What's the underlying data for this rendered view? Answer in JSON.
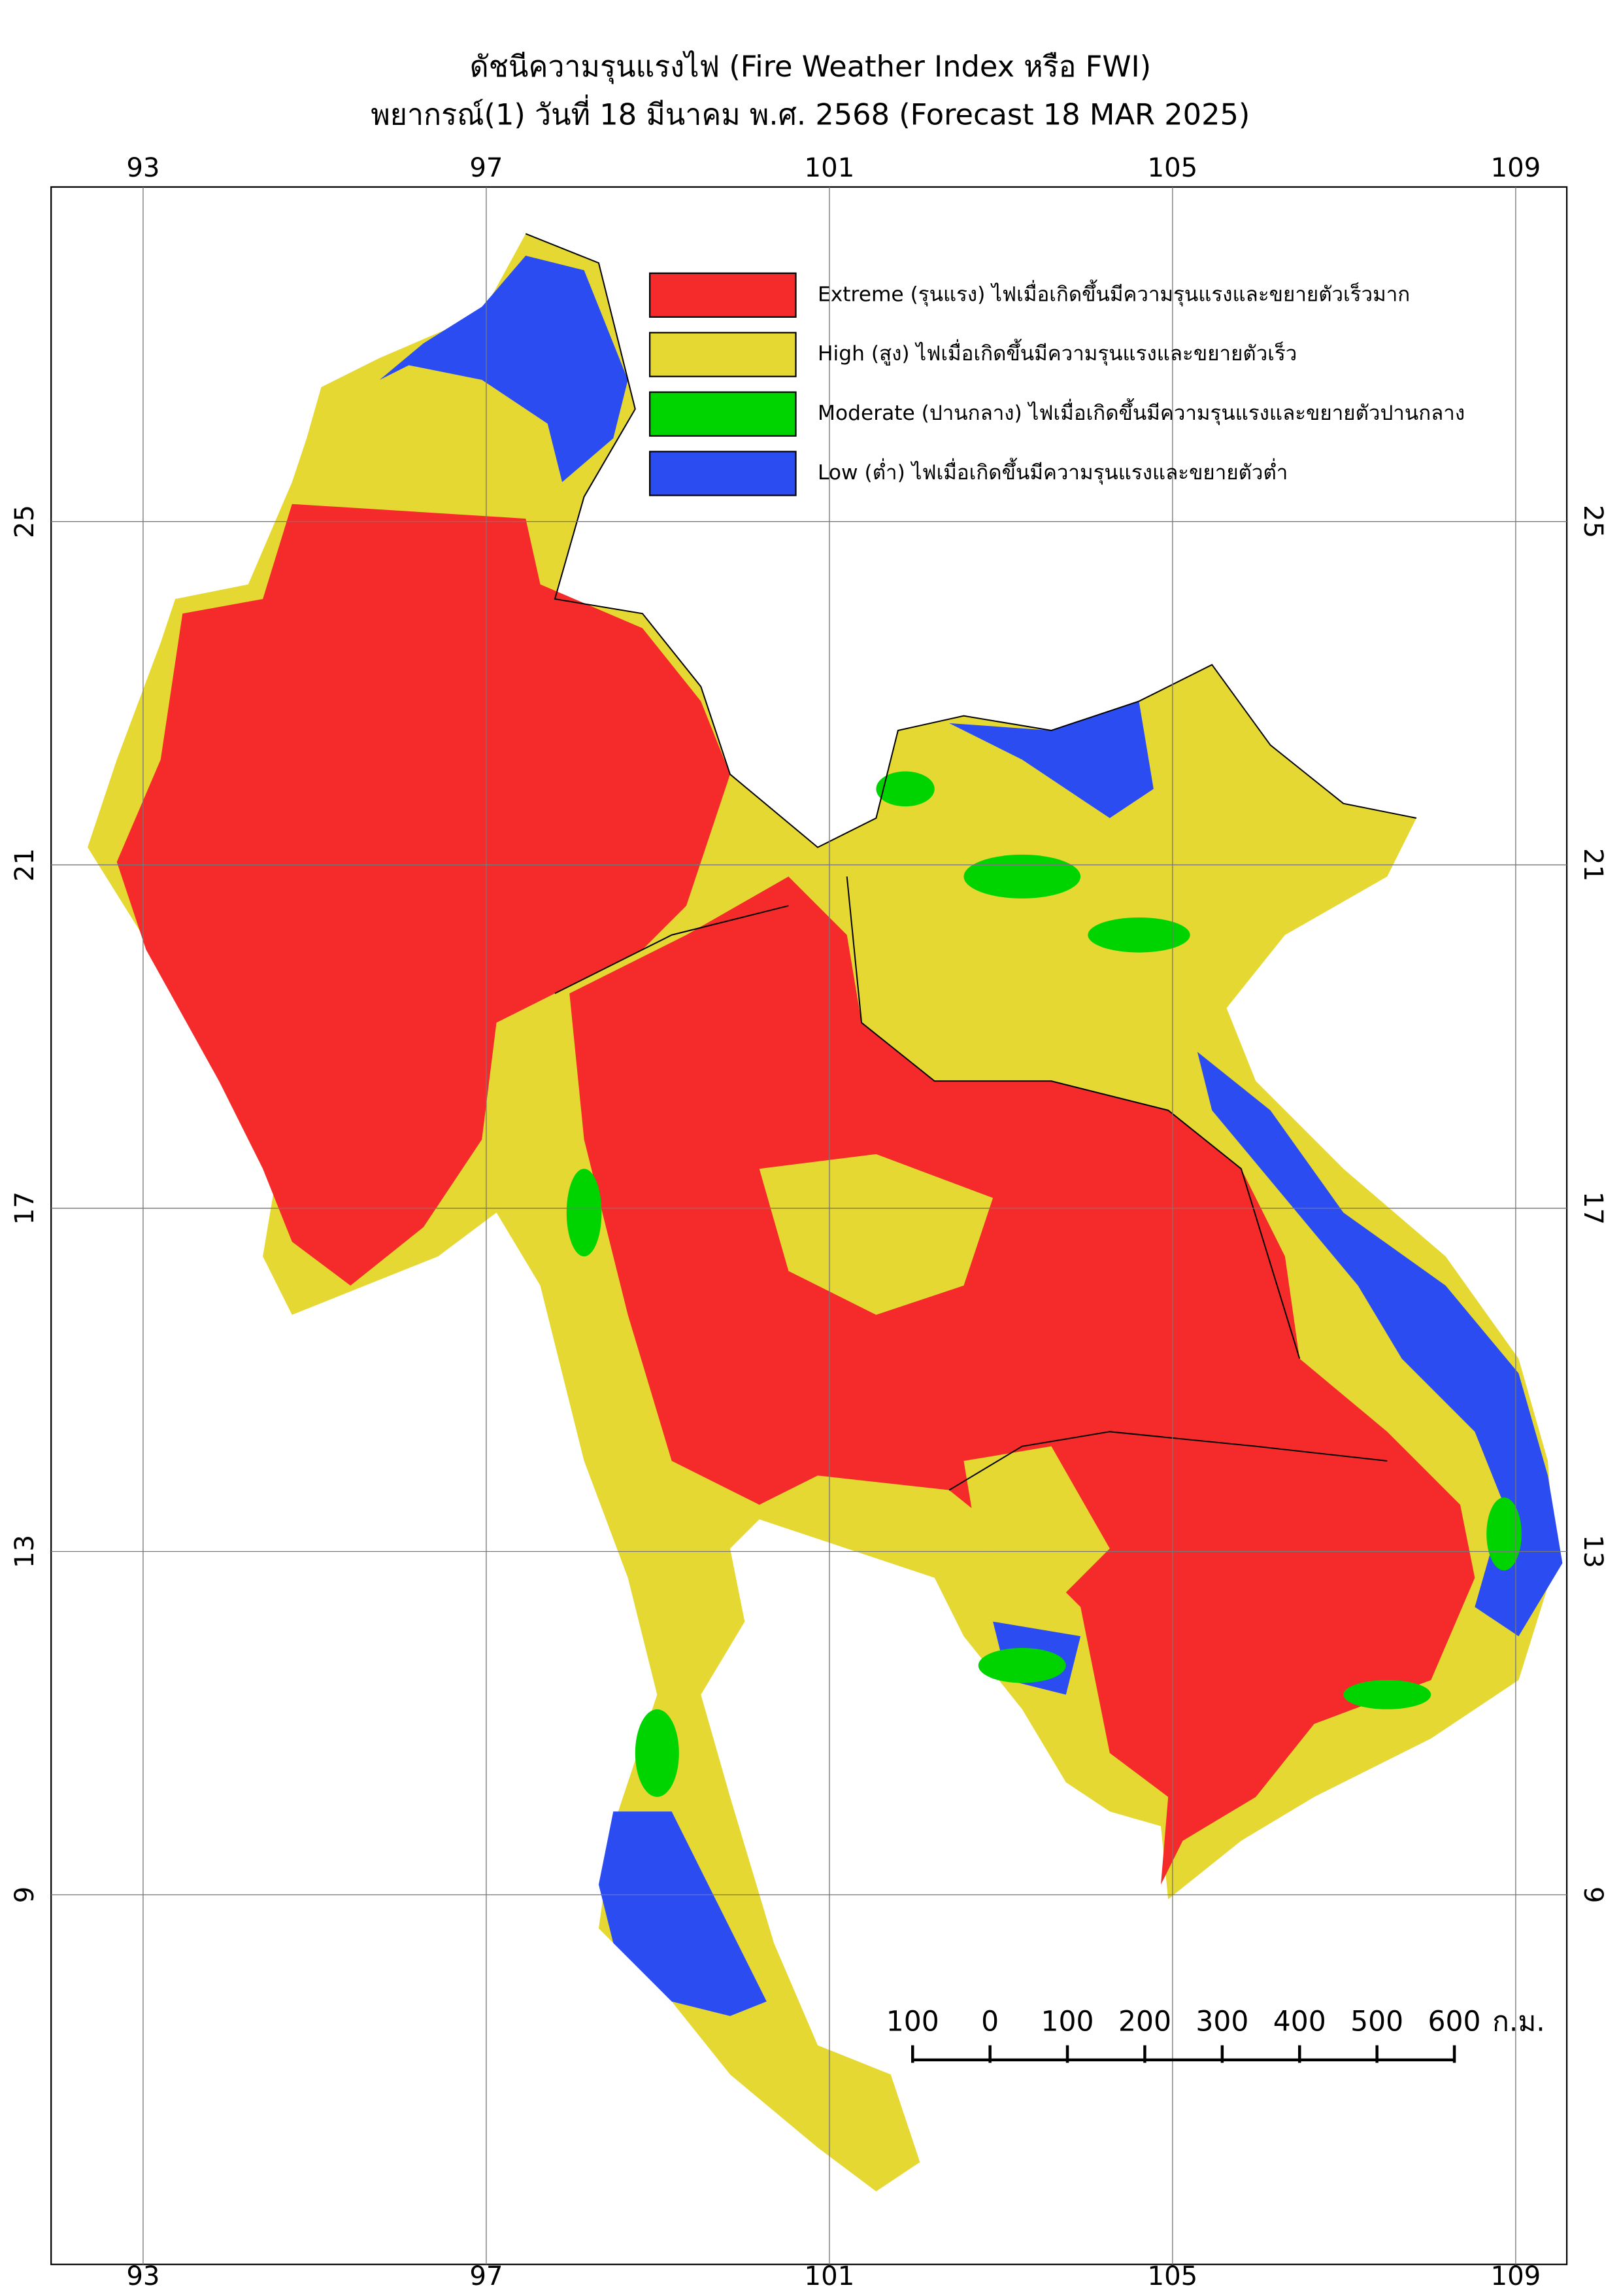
{
  "header": {
    "title": "ดัชนีความรุนแรงไฟ (Fire Weather Index หรือ FWI)",
    "subtitle": "พยากรณ์(1) วันที่ 18 มีนาคม พ.ศ. 2568 (Forecast 18 MAR 2025)"
  },
  "map": {
    "lon_ticks": [
      93,
      97,
      101,
      105,
      109
    ],
    "lat_ticks": [
      25,
      21,
      17,
      13,
      9
    ]
  },
  "legend": [
    {
      "color": "#f52a2a",
      "label": "Extreme (รุนแรง) ไฟเมื่อเกิดขึ้นมีความรุนแรงและขยายตัวเร็วมาก"
    },
    {
      "color": "#e6d832",
      "label": "High (สูง) ไฟเมื่อเกิดขึ้นมีความรุนแรงและขยายตัวเร็ว"
    },
    {
      "color": "#00d400",
      "label": "Moderate (ปานกลาง) ไฟเมื่อเกิดขึ้นมีความรุนแรงและขยายตัวปานกลาง"
    },
    {
      "color": "#2b4cf0",
      "label": "Low (ต่ำ) ไฟเมื่อเกิดขึ้นมีความรุนแรงและขยายตัวต่ำ"
    }
  ],
  "scale_bar": {
    "labels": [
      100,
      0,
      100,
      200,
      300,
      400,
      500,
      600
    ],
    "unit": "ก.ม."
  }
}
